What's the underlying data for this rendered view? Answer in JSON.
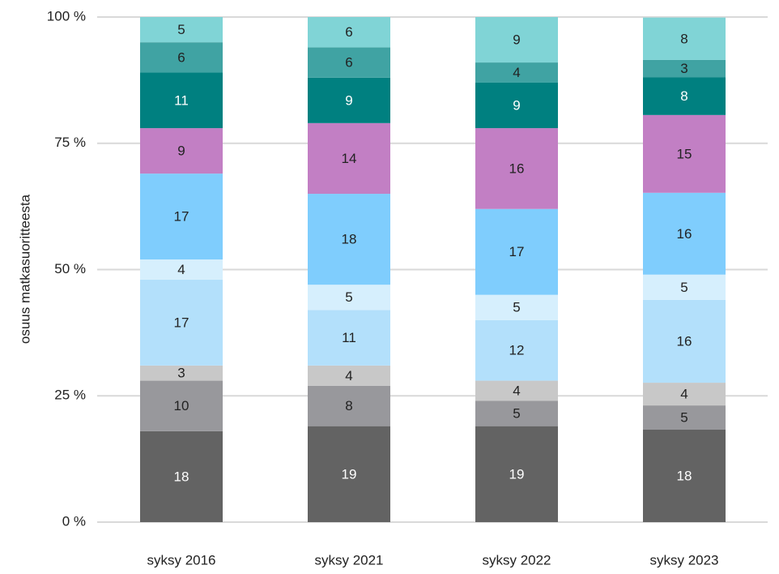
{
  "chart_data": {
    "type": "stacked_bar",
    "y_label": "osuus matkasuoritteesta",
    "categories": [
      "syksy 2016",
      "syksy 2021",
      "syksy 2022",
      "syksy 2023"
    ],
    "ylim": [
      0,
      100
    ],
    "yticks": [
      {
        "value": 0,
        "label": "0 %"
      },
      {
        "value": 25,
        "label": "25 %"
      },
      {
        "value": 50,
        "label": "50 %"
      },
      {
        "value": 75,
        "label": "75 %"
      },
      {
        "value": 100,
        "label": "100 %"
      }
    ],
    "grid": true,
    "series": [
      {
        "color": "#636363",
        "values": [
          18,
          19,
          19,
          18.3
        ],
        "value_labels": [
          "18",
          "19",
          "19",
          "18"
        ]
      },
      {
        "color": "#98989c",
        "values": [
          10,
          8,
          5,
          4.8
        ],
        "value_labels": [
          "10",
          "8",
          "5",
          "5"
        ]
      },
      {
        "color": "#c8c8c8",
        "values": [
          3,
          4,
          4,
          4.5
        ],
        "value_labels": [
          "3",
          "4",
          "4",
          "4"
        ]
      },
      {
        "color": "#b3e0fb",
        "values": [
          17,
          11,
          12,
          16.4
        ],
        "value_labels": [
          "17",
          "11",
          "12",
          "16"
        ]
      },
      {
        "color": "#d6effd",
        "values": [
          4,
          5,
          5,
          5.0
        ],
        "value_labels": [
          "4",
          "5",
          "5",
          "5"
        ]
      },
      {
        "color": "#7fcdfd",
        "values": [
          17,
          18,
          17,
          16.2
        ],
        "value_labels": [
          "17",
          "18",
          "17",
          "16"
        ]
      },
      {
        "color": "#c27fc4",
        "values": [
          9,
          14,
          16,
          15.4
        ],
        "value_labels": [
          "9",
          "14",
          "16",
          "15"
        ]
      },
      {
        "color": "#008080",
        "values": [
          11,
          9,
          9,
          7.5
        ],
        "value_labels": [
          "11",
          "9",
          "9",
          "8"
        ]
      },
      {
        "color": "#40a3a3",
        "values": [
          6,
          6,
          4,
          3.4
        ],
        "value_labels": [
          "6",
          "6",
          "4",
          "3"
        ]
      },
      {
        "color": "#80d4d6",
        "values": [
          5,
          6,
          9,
          8.4
        ],
        "value_labels": [
          "5",
          "6",
          "9",
          "8"
        ]
      }
    ]
  }
}
